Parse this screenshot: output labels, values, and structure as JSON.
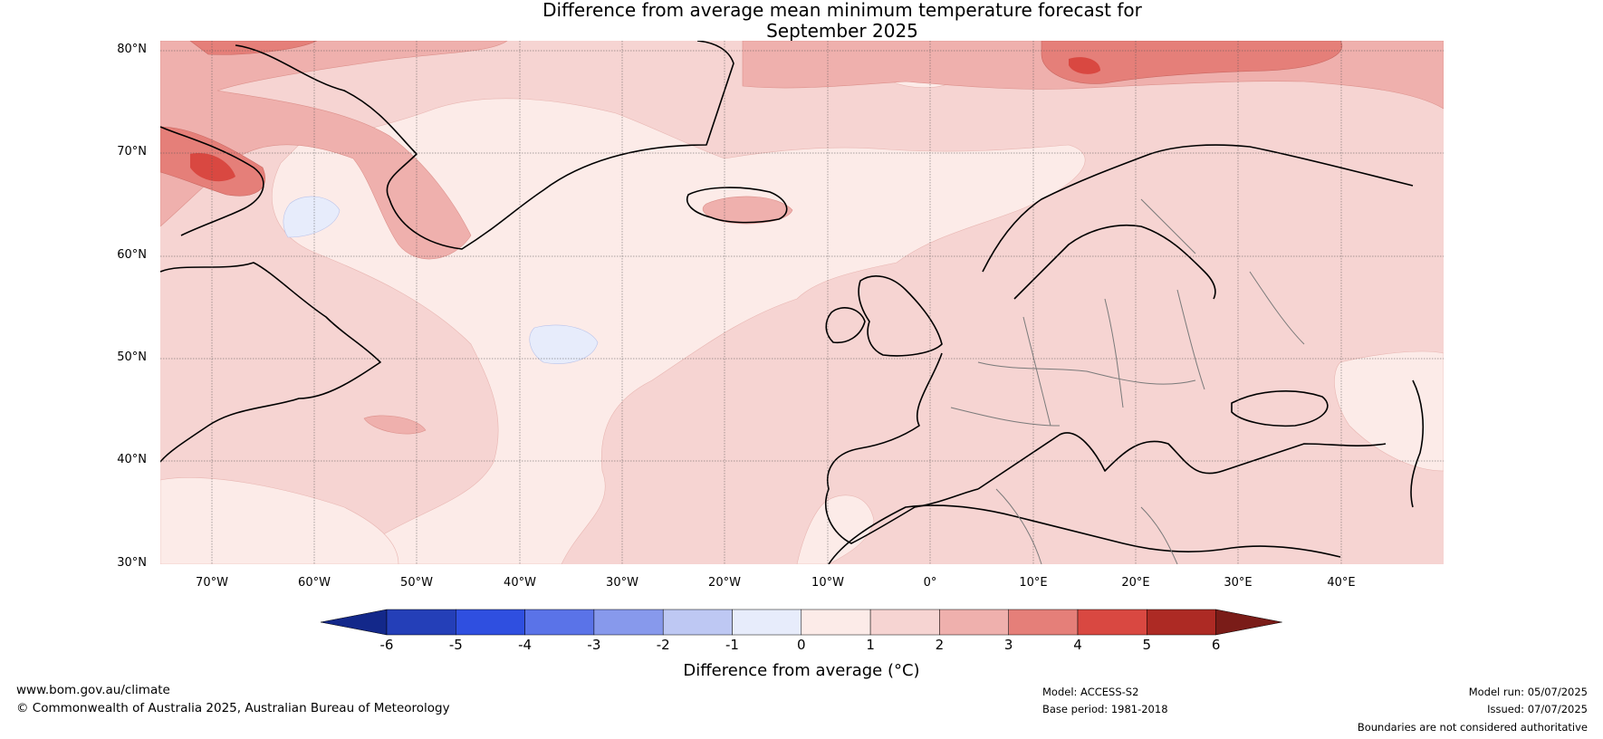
{
  "title": {
    "line1": "Difference from average mean minimum temperature forecast for",
    "line2": "September 2025"
  },
  "map": {
    "latitude_labels": [
      "80°N",
      "70°N",
      "60°N",
      "50°N",
      "40°N",
      "30°N"
    ],
    "longitude_labels": [
      "70°W",
      "60°W",
      "50°W",
      "40°W",
      "30°W",
      "20°W",
      "10°W",
      "0°",
      "10°E",
      "20°E",
      "30°E",
      "40°E"
    ],
    "extent": {
      "lon_min": -75,
      "lon_max": 50,
      "lat_min": 30,
      "lat_max": 81
    },
    "dominant_anomaly": "warmer than average across most of the region (0 to 2 °C), 2 to 5 °C over Canadian Arctic, Greenland and Svalbard, small areas of -1 to 0 °C over the Labrador Sea and mid North Atlantic"
  },
  "colorbar": {
    "title": "Difference from average (°C)",
    "ticks": [
      "-6",
      "-5",
      "-4",
      "-3",
      "-2",
      "-1",
      "0",
      "1",
      "2",
      "3",
      "4",
      "5",
      "6"
    ],
    "colors": [
      "#13288a",
      "#243fb8",
      "#2f4fe0",
      "#5a73e8",
      "#8799ec",
      "#bec8f3",
      "#e7ecfb",
      "#fcebe8",
      "#f6d4d2",
      "#efb0ad",
      "#e57f79",
      "#d94841",
      "#ad2a24",
      "#7a1c18"
    ]
  },
  "footer": {
    "website": "www.bom.gov.au/climate",
    "copyright": "© Commonwealth of Australia 2025, Australian Bureau of Meteorology",
    "model": "Model: ACCESS-S2",
    "base_period": "Base period: 1981-2018",
    "model_run": "Model run: 05/07/2025",
    "issued": "Issued: 07/07/2025",
    "disclaimer": "Boundaries are not considered authoritative"
  }
}
